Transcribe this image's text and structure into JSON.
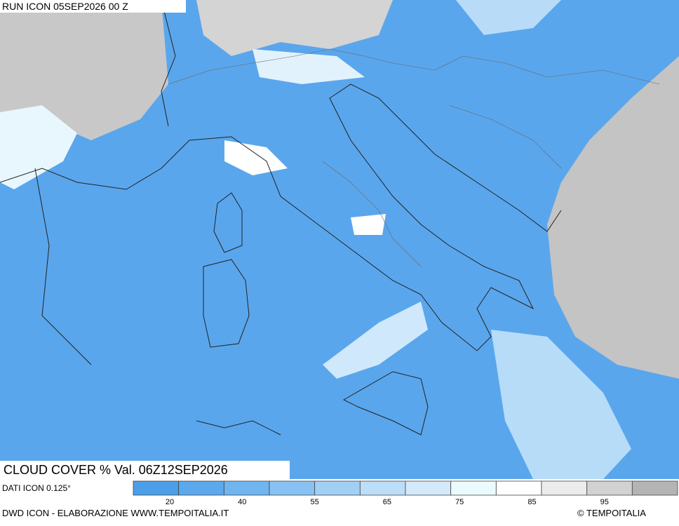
{
  "header": {
    "run": "RUN ICON 05SEP2026 00 Z",
    "title": "CLOUD COVER % Val. 06Z12SEP2026"
  },
  "legend": {
    "source": "DATI ICON 0.125°",
    "colors": [
      "#4d9ee8",
      "#5ca8ec",
      "#70b4f0",
      "#88c2f3",
      "#a2d0f5",
      "#bcdef8",
      "#d4eafb",
      "#eafafd",
      "#ffffff",
      "#ececec",
      "#d2d2d2",
      "#b4b4b4"
    ],
    "labels": [
      "20",
      "40",
      "55",
      "65",
      "75",
      "85",
      "95"
    ]
  },
  "footer": {
    "credit": "DWD ICON - ELABORAZIONE WWW.TEMPOITALIA.IT",
    "copyright": "© TEMPOITALIA"
  }
}
